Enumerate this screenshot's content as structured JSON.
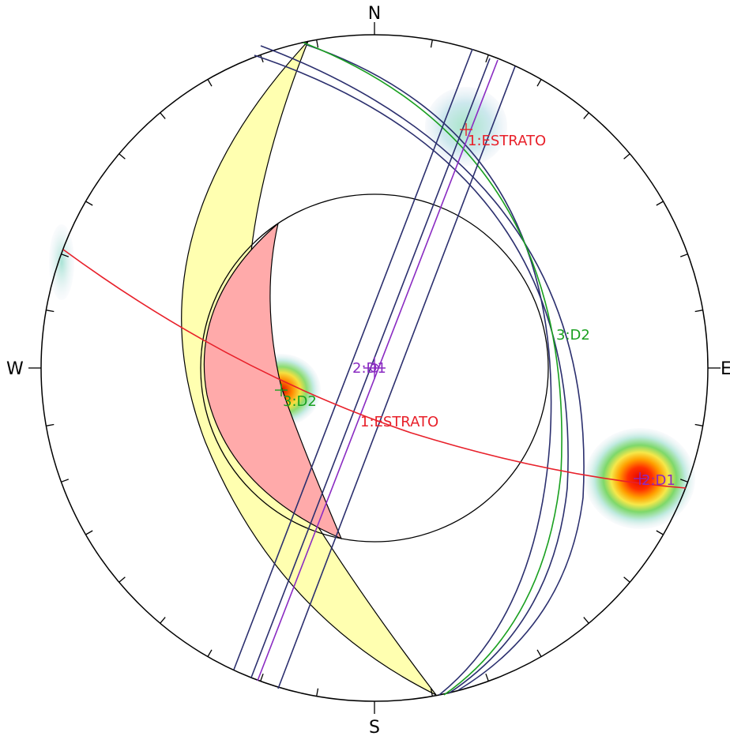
{
  "cardinals": {
    "north": "N",
    "east": "E",
    "south": "S",
    "west": "W"
  },
  "colors": {
    "estrato": "#e8202a",
    "d1": "#8a2bc2",
    "d2": "#1aa020",
    "extra_planes": "#2b2f6e",
    "friction_cone": "#ffaaaa",
    "daylight_envelope": "#ffffb0",
    "outline": "#000000"
  },
  "pole_labels": {
    "estrato": "1:ESTRATO",
    "d1": "2:D1",
    "d2": "3:D2"
  },
  "plane_labels": {
    "estrato": "1:ESTRATO",
    "d1": "2:D1",
    "d2": "3:D2"
  },
  "legend_note": ""
}
